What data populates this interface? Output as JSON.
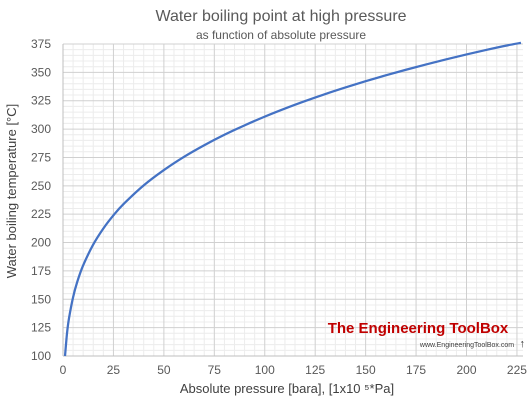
{
  "chart_data": {
    "type": "line",
    "title": "Water boiling point at high pressure",
    "subtitle": "as function of absolute pressure",
    "xlabel": "Absolute pressure [bara], [1x10 ⁵*Pa]",
    "ylabel": "Water boiling temperature [°C]",
    "xlim": [
      0,
      228
    ],
    "ylim": [
      100,
      375
    ],
    "x_ticks": [
      0,
      25,
      50,
      75,
      100,
      125,
      150,
      175,
      200,
      225
    ],
    "y_ticks": [
      100,
      125,
      150,
      175,
      200,
      225,
      250,
      275,
      300,
      325,
      350,
      375
    ],
    "grid": true,
    "legend": "none",
    "series": [
      {
        "color": "#4472c4",
        "points": [
          [
            1,
            100
          ],
          [
            2,
            120.2
          ],
          [
            3,
            133.5
          ],
          [
            5,
            151.8
          ],
          [
            7,
            165
          ],
          [
            10,
            179.9
          ],
          [
            15,
            198.3
          ],
          [
            20,
            212.4
          ],
          [
            25,
            224
          ],
          [
            30,
            233.9
          ],
          [
            40,
            250.4
          ],
          [
            50,
            263.9
          ],
          [
            60,
            275.6
          ],
          [
            70,
            285.8
          ],
          [
            80,
            295
          ],
          [
            90,
            303.3
          ],
          [
            100,
            311
          ],
          [
            110,
            318.1
          ],
          [
            120,
            324.7
          ],
          [
            130,
            330.9
          ],
          [
            140,
            336.7
          ],
          [
            150,
            342.2
          ],
          [
            160,
            347.4
          ],
          [
            170,
            352.3
          ],
          [
            180,
            357
          ],
          [
            190,
            361.5
          ],
          [
            200,
            365.8
          ],
          [
            210,
            369.9
          ],
          [
            220,
            373.7
          ],
          [
            227,
            376
          ]
        ]
      }
    ]
  },
  "watermark": {
    "title": "The Engineering ToolBox",
    "url": "www.EngineeringToolBox.com",
    "color": "#c00000"
  }
}
